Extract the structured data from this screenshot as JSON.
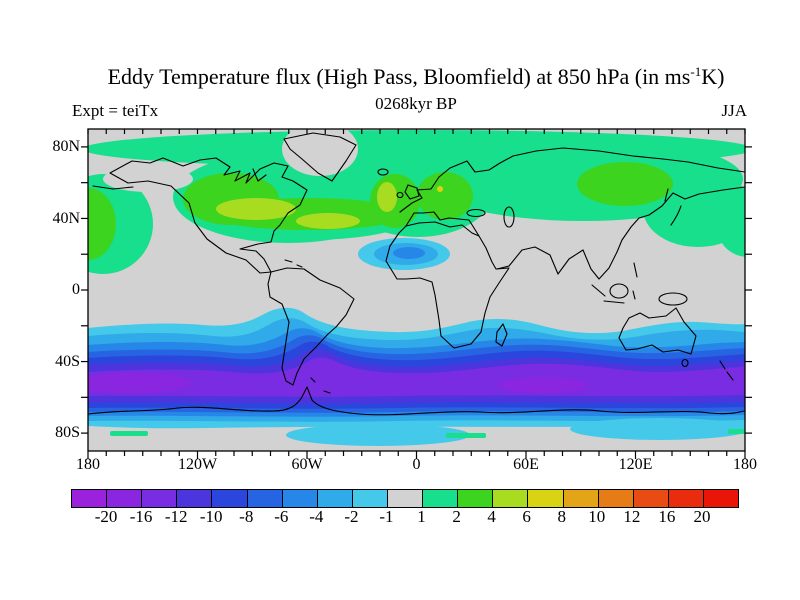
{
  "title": {
    "prefix": "Eddy Temperature flux (High Pass, Bloomfield) at 850 hPa (in ms",
    "superscript": "-1",
    "suffix": "K)"
  },
  "header": {
    "subtitle": "0268kyr BP",
    "experiment_label": "Expt = teiTx",
    "season_label": "JJA"
  },
  "map": {
    "x_axis_labels": [
      "180",
      "120W",
      "60W",
      "0",
      "60E",
      "120E",
      "180"
    ],
    "y_axis_labels": [
      "80N",
      "40N",
      "0",
      "40S",
      "80S"
    ],
    "background_color": "#d2d2d2",
    "coastline_color": "#000000"
  },
  "colorbar": {
    "labels": [
      "-20",
      "-16",
      "-12",
      "-10",
      "-8",
      "-6",
      "-4",
      "-2",
      "-1",
      "1",
      "2",
      "4",
      "6",
      "8",
      "10",
      "12",
      "16",
      "20"
    ],
    "colors": [
      "#9a22dd",
      "#8a26e0",
      "#7a2ce2",
      "#4c35dd",
      "#2a46dd",
      "#2764e2",
      "#2787e8",
      "#30aae8",
      "#44c9ea",
      "#d2d2d2",
      "#17df8c",
      "#3cd41f",
      "#a8dc20",
      "#d8d414",
      "#e4a418",
      "#e57c16",
      "#e84c12",
      "#e92c0e",
      "#ea1509"
    ]
  },
  "chart_data": {
    "type": "filled_contour_map",
    "title": "Eddy Temperature flux (High Pass, Bloomfield) at 850 hPa (in ms-1 K)",
    "subtitle": "0268kyr BP",
    "experiment": "teiTx",
    "season": "JJA",
    "pressure_level_hPa": 850,
    "units": "ms-1 K",
    "projection": "equirectangular",
    "lon_range": [
      -180,
      180
    ],
    "lat_range": [
      -90,
      90
    ],
    "x_ticks_deg": 10,
    "y_ticks_deg": 20,
    "contour_levels": [
      -20,
      -16,
      -12,
      -10,
      -8,
      -6,
      -4,
      -2,
      -1,
      1,
      2,
      4,
      6,
      8,
      10,
      12,
      16,
      20
    ],
    "legend_position": "bottom horizontal colorbar",
    "features": [
      {
        "region": "Arctic band and northern mid-latitudes (40N-85N, most longitudes)",
        "value_range": [
          1,
          2
        ]
      },
      {
        "region": "Central/eastern Canada and North Atlantic storm track into Europe",
        "value_range": [
          2,
          6
        ]
      },
      {
        "region": "Great Lakes core and mid-Atlantic ribbon west of UK",
        "value_range": [
          4,
          6
        ]
      },
      {
        "region": "Scandinavia and central Siberia",
        "value_range": [
          2,
          4
        ]
      },
      {
        "region": "North Pacific near dateline (40N-55N)",
        "value_range": [
          2,
          4
        ]
      },
      {
        "region": "West Africa / Sahel patch (5N-20N)",
        "value_range": [
          -6,
          -2
        ]
      },
      {
        "region": "Tropics and subtropics elsewhere, Greenland, Antarctica interior",
        "value_range": [
          -1,
          1
        ]
      },
      {
        "region": "Southern Ocean band (25S-75S, all longitudes)",
        "value_range": [
          -20,
          -1
        ]
      },
      {
        "region": "Southern Ocean purple core (48S-65S)",
        "value_range": [
          -20,
          -12
        ]
      },
      {
        "region": "Patches over coastal Antarctica (70S-85S)",
        "value_range": [
          -4,
          -1
        ]
      }
    ]
  }
}
